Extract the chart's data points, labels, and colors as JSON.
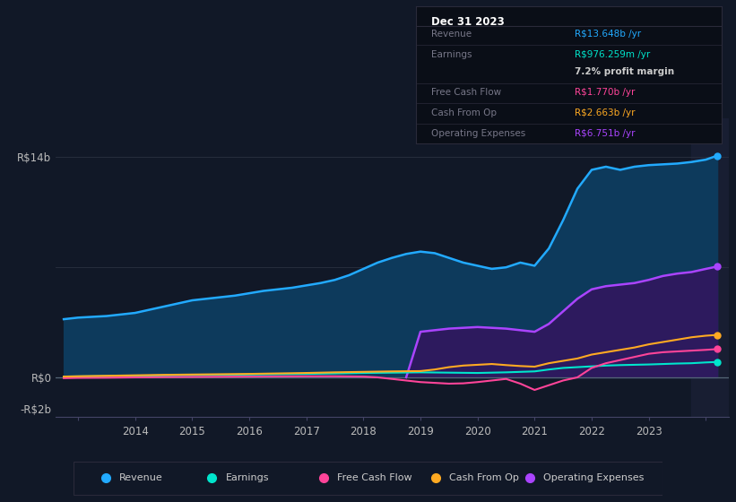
{
  "background_color": "#111827",
  "plot_bg_color": "#111827",
  "colors": {
    "revenue": "#22aaff",
    "earnings": "#00e5cc",
    "free_cash_flow": "#ff4499",
    "cash_from_op": "#ffaa22",
    "operating_expenses": "#aa44ff",
    "revenue_fill": "#0d3a5c",
    "op_exp_fill": "#2d1a5e",
    "grid": "#2a3040",
    "zero_line": "#556677"
  },
  "title_box": {
    "date": "Dec 31 2023",
    "revenue_label": "Revenue",
    "revenue_val": "R$13.648b /yr",
    "earnings_label": "Earnings",
    "earnings_val": "R$976.259m /yr",
    "profit_margin": "7.2% profit margin",
    "fcf_label": "Free Cash Flow",
    "fcf_val": "R$1.770b /yr",
    "cashop_label": "Cash From Op",
    "cashop_val": "R$2.663b /yr",
    "opex_label": "Operating Expenses",
    "opex_val": "R$6.751b /yr"
  },
  "ylim": [
    -2.5,
    16.5
  ],
  "xlim": [
    2012.6,
    2024.4
  ],
  "revenue_x": [
    2012.75,
    2013.0,
    2013.25,
    2013.5,
    2013.75,
    2014.0,
    2014.25,
    2014.5,
    2014.75,
    2015.0,
    2015.25,
    2015.5,
    2015.75,
    2016.0,
    2016.25,
    2016.5,
    2016.75,
    2017.0,
    2017.25,
    2017.5,
    2017.75,
    2018.0,
    2018.25,
    2018.5,
    2018.75,
    2019.0,
    2019.25,
    2019.5,
    2019.75,
    2020.0,
    2020.25,
    2020.5,
    2020.75,
    2021.0,
    2021.25,
    2021.5,
    2021.75,
    2022.0,
    2022.25,
    2022.5,
    2022.75,
    2023.0,
    2023.25,
    2023.5,
    2023.75,
    2024.0,
    2024.2
  ],
  "revenue_y": [
    3.7,
    3.8,
    3.85,
    3.9,
    4.0,
    4.1,
    4.3,
    4.5,
    4.7,
    4.9,
    5.0,
    5.1,
    5.2,
    5.35,
    5.5,
    5.6,
    5.7,
    5.85,
    6.0,
    6.2,
    6.5,
    6.9,
    7.3,
    7.6,
    7.85,
    8.0,
    7.9,
    7.6,
    7.3,
    7.1,
    6.9,
    7.0,
    7.3,
    7.1,
    8.2,
    10.0,
    12.0,
    13.2,
    13.4,
    13.2,
    13.4,
    13.5,
    13.55,
    13.6,
    13.7,
    13.85,
    14.1
  ],
  "op_exp_x": [
    2018.75,
    2019.0,
    2019.25,
    2019.5,
    2019.75,
    2020.0,
    2020.25,
    2020.5,
    2020.75,
    2021.0,
    2021.25,
    2021.5,
    2021.75,
    2022.0,
    2022.25,
    2022.5,
    2022.75,
    2023.0,
    2023.25,
    2023.5,
    2023.75,
    2024.0,
    2024.2
  ],
  "op_exp_y": [
    0.0,
    2.9,
    3.0,
    3.1,
    3.15,
    3.2,
    3.15,
    3.1,
    3.0,
    2.9,
    3.4,
    4.2,
    5.0,
    5.6,
    5.8,
    5.9,
    6.0,
    6.2,
    6.45,
    6.6,
    6.7,
    6.9,
    7.05
  ],
  "earnings_x": [
    2012.75,
    2013.0,
    2013.5,
    2014.0,
    2014.5,
    2015.0,
    2015.5,
    2016.0,
    2016.5,
    2017.0,
    2017.5,
    2018.0,
    2018.5,
    2019.0,
    2019.5,
    2020.0,
    2020.25,
    2020.5,
    2020.75,
    2021.0,
    2021.25,
    2021.5,
    2021.75,
    2022.0,
    2022.25,
    2022.5,
    2022.75,
    2023.0,
    2023.25,
    2023.5,
    2023.75,
    2024.0,
    2024.2
  ],
  "earnings_y": [
    0.05,
    0.06,
    0.08,
    0.1,
    0.12,
    0.14,
    0.16,
    0.18,
    0.2,
    0.22,
    0.25,
    0.28,
    0.3,
    0.32,
    0.3,
    0.28,
    0.3,
    0.32,
    0.35,
    0.38,
    0.5,
    0.6,
    0.65,
    0.7,
    0.75,
    0.78,
    0.8,
    0.82,
    0.85,
    0.88,
    0.9,
    0.95,
    0.98
  ],
  "fcf_x": [
    2012.75,
    2013.0,
    2013.5,
    2014.0,
    2014.5,
    2015.0,
    2015.5,
    2016.0,
    2016.5,
    2017.0,
    2017.5,
    2018.0,
    2018.25,
    2018.5,
    2018.75,
    2019.0,
    2019.25,
    2019.5,
    2019.75,
    2020.0,
    2020.25,
    2020.5,
    2020.75,
    2021.0,
    2021.25,
    2021.5,
    2021.75,
    2022.0,
    2022.25,
    2022.5,
    2022.75,
    2023.0,
    2023.25,
    2023.5,
    2023.75,
    2024.0,
    2024.2
  ],
  "fcf_y": [
    -0.05,
    -0.03,
    -0.02,
    0.0,
    0.02,
    0.03,
    0.04,
    0.05,
    0.06,
    0.07,
    0.07,
    0.05,
    0.0,
    -0.1,
    -0.2,
    -0.3,
    -0.35,
    -0.4,
    -0.38,
    -0.3,
    -0.2,
    -0.1,
    -0.4,
    -0.8,
    -0.5,
    -0.2,
    0.0,
    0.6,
    0.9,
    1.1,
    1.3,
    1.5,
    1.6,
    1.65,
    1.7,
    1.75,
    1.8
  ],
  "cashop_x": [
    2012.75,
    2013.0,
    2013.5,
    2014.0,
    2014.5,
    2015.0,
    2015.5,
    2016.0,
    2016.5,
    2017.0,
    2017.5,
    2018.0,
    2018.5,
    2019.0,
    2019.25,
    2019.5,
    2019.75,
    2020.0,
    2020.25,
    2020.5,
    2020.75,
    2021.0,
    2021.25,
    2021.5,
    2021.75,
    2022.0,
    2022.25,
    2022.5,
    2022.75,
    2023.0,
    2023.25,
    2023.5,
    2023.75,
    2024.0,
    2024.2
  ],
  "cashop_y": [
    0.05,
    0.07,
    0.1,
    0.13,
    0.16,
    0.18,
    0.2,
    0.22,
    0.25,
    0.28,
    0.32,
    0.35,
    0.38,
    0.4,
    0.5,
    0.65,
    0.75,
    0.8,
    0.85,
    0.78,
    0.72,
    0.68,
    0.9,
    1.05,
    1.2,
    1.45,
    1.6,
    1.75,
    1.9,
    2.1,
    2.25,
    2.4,
    2.55,
    2.65,
    2.7
  ],
  "forecast_start": 2023.75,
  "legend_items": [
    {
      "label": "Revenue",
      "color": "#22aaff"
    },
    {
      "label": "Earnings",
      "color": "#00e5cc"
    },
    {
      "label": "Free Cash Flow",
      "color": "#ff4499"
    },
    {
      "label": "Cash From Op",
      "color": "#ffaa22"
    },
    {
      "label": "Operating Expenses",
      "color": "#aa44ff"
    }
  ]
}
